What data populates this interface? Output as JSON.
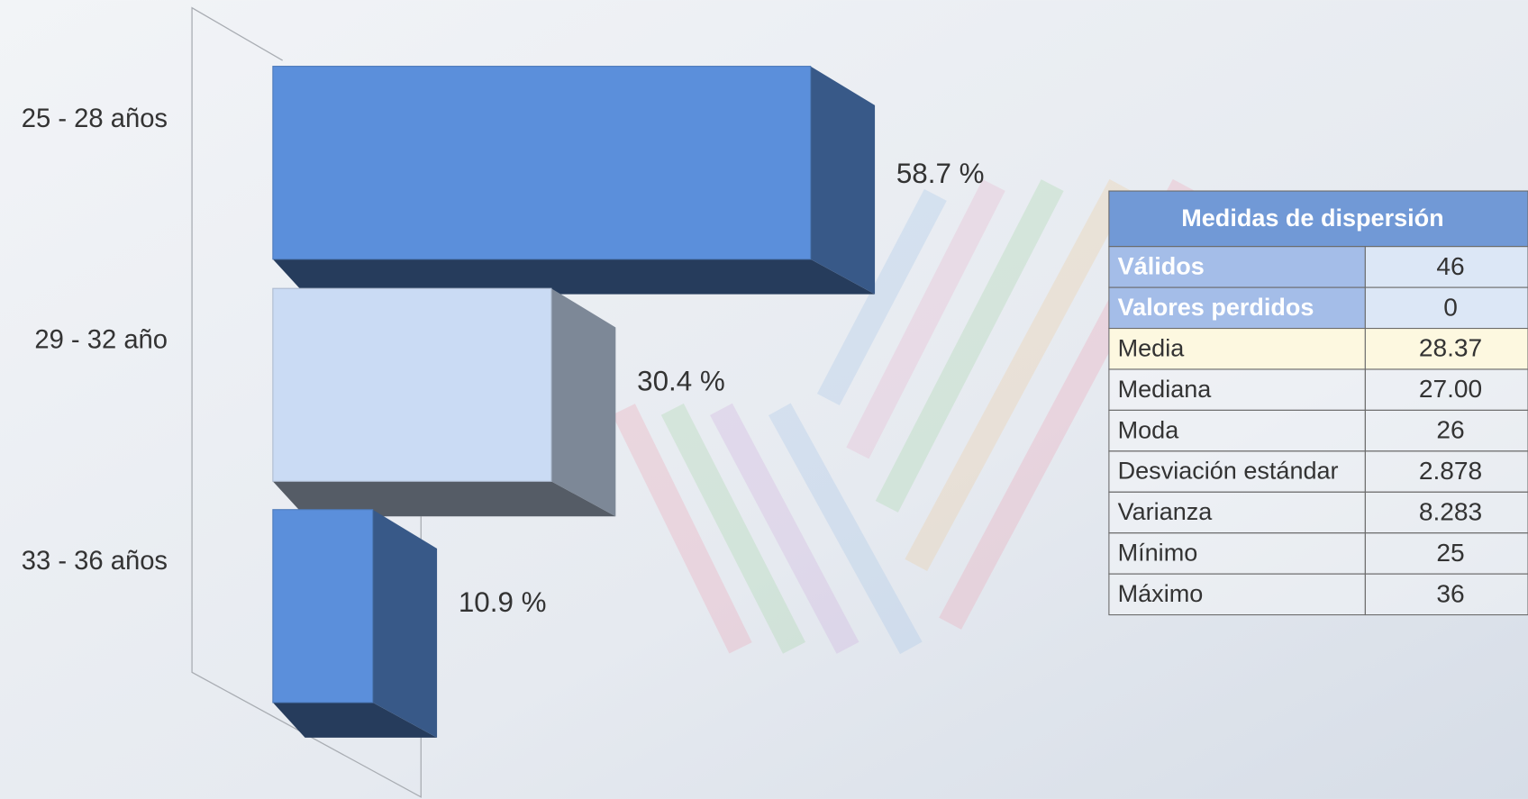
{
  "chart_data": {
    "type": "bar3d",
    "categories": [
      "25 - 28 años",
      "29 - 32 año",
      "33 - 36 años"
    ],
    "values": [
      58.7,
      30.4,
      10.9
    ],
    "value_labels": [
      "58.7 %",
      "30.4 %",
      "10.9 %"
    ],
    "colors": [
      "#5b8fdb",
      "#cadbf4",
      "#5b8fdb"
    ]
  },
  "table": {
    "title": "Medidas de dispersión",
    "rows": [
      [
        "Válidos",
        "46"
      ],
      [
        "Valores perdidos",
        "0"
      ],
      [
        "Media",
        "28.37"
      ],
      [
        "Mediana",
        "27.00"
      ],
      [
        "Moda",
        "26"
      ],
      [
        "Desviación estándar",
        "2.878"
      ],
      [
        "Varianza",
        "8.283"
      ],
      [
        "Mínimo",
        "25"
      ],
      [
        "Máximo",
        "36"
      ]
    ]
  }
}
